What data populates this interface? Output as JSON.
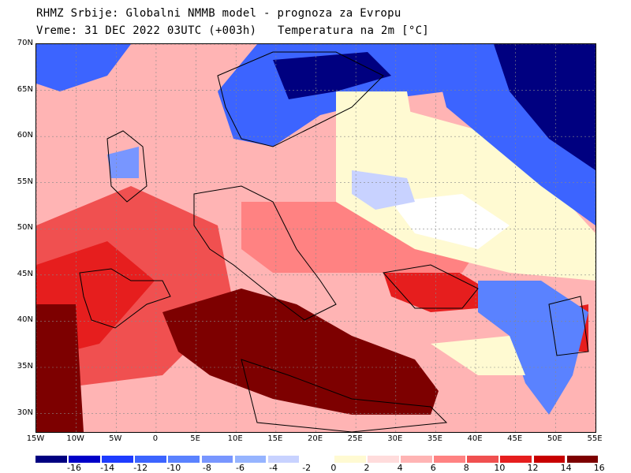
{
  "header": {
    "line1": "RHMZ Srbije: Globalni NMMB model - prognoza za Evropu",
    "line2": "Vreme: 31 DEC 2022 03UTC (+003h)",
    "line3": "Temperatura na 2m [°C]"
  },
  "map": {
    "lat_labels": [
      "70N",
      "65N",
      "60N",
      "55N",
      "50N",
      "45N",
      "40N",
      "35N",
      "30N"
    ],
    "lon_labels": [
      "15W",
      "10W",
      "5W",
      "0",
      "5E",
      "10E",
      "15E",
      "20E",
      "25E",
      "30E",
      "35E",
      "40E",
      "45E",
      "50E",
      "55E"
    ],
    "lat_range": [
      28,
      70
    ],
    "lon_range": [
      -15,
      55
    ]
  },
  "legend": {
    "labels": [
      "-16",
      "-14",
      "-12",
      "-10",
      "-8",
      "-6",
      "-4",
      "-2",
      "0",
      "2",
      "4",
      "6",
      "8",
      "10",
      "12",
      "14",
      "16"
    ],
    "colors": [
      "#000080",
      "#0000c8",
      "#1e3cff",
      "#3c64ff",
      "#5a82ff",
      "#7896ff",
      "#96b4ff",
      "#c8d2ff",
      "#ffffff",
      "#fffad2",
      "#ffdcdc",
      "#ffb4b4",
      "#ff8282",
      "#f05050",
      "#e61e1e",
      "#c80000",
      "#7d0000"
    ]
  }
}
